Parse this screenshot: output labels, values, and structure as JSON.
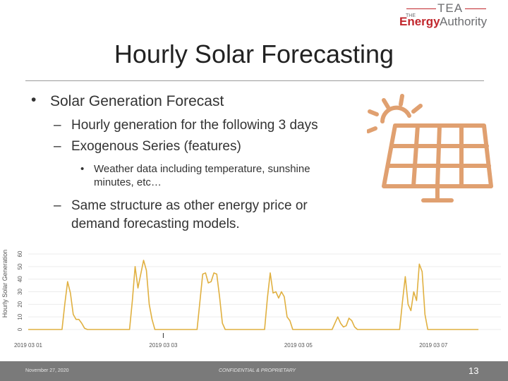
{
  "logo": {
    "line1": "TEA",
    "prefix": "THE",
    "word1": "Energy",
    "word2": "Authority"
  },
  "title": "Hourly Solar Forecasting",
  "bullets": {
    "main": "Solar Generation Forecast",
    "sub1": "Hourly generation for the following 3 days",
    "sub2": "Exogenous Series (features)",
    "sub3_line1": "Weather data including temperature, sunshine",
    "sub3_line2": "minutes, etc…",
    "sub4_line1": "Same structure as other energy price or",
    "sub4_line2": "demand forecasting models.",
    "dash": "–",
    "dot": "•"
  },
  "icon": {
    "name": "solar-panel-icon",
    "color": "#e0a070"
  },
  "chart_data": {
    "type": "line",
    "ylabel": "Hourly Solar Generation",
    "ylim": [
      0,
      60
    ],
    "yticks": [
      "0",
      "10",
      "20",
      "30",
      "40",
      "50",
      "60"
    ],
    "xlim": [
      0,
      168
    ],
    "xticks": [
      {
        "x": 0,
        "label": "2019 03 01"
      },
      {
        "x": 48,
        "label": "2019 03 03"
      },
      {
        "x": 96,
        "label": "2019 03 05"
      },
      {
        "x": 144,
        "label": "2019 03 07"
      }
    ],
    "series": [
      {
        "color": "#e0b040",
        "points": [
          [
            0,
            0
          ],
          [
            12,
            0
          ],
          [
            13,
            20
          ],
          [
            14,
            38
          ],
          [
            15,
            29
          ],
          [
            16,
            12
          ],
          [
            17,
            8
          ],
          [
            18,
            8
          ],
          [
            19,
            5
          ],
          [
            20,
            1
          ],
          [
            21,
            0
          ],
          [
            36,
            0
          ],
          [
            37,
            23
          ],
          [
            38,
            50
          ],
          [
            39,
            33
          ],
          [
            40,
            44
          ],
          [
            41,
            55
          ],
          [
            42,
            47
          ],
          [
            43,
            20
          ],
          [
            44,
            8
          ],
          [
            45,
            0
          ],
          [
            60,
            0
          ],
          [
            61,
            22
          ],
          [
            62,
            44
          ],
          [
            63,
            45
          ],
          [
            64,
            37
          ],
          [
            65,
            38
          ],
          [
            66,
            45
          ],
          [
            67,
            44
          ],
          [
            68,
            26
          ],
          [
            69,
            5
          ],
          [
            70,
            0
          ],
          [
            84,
            0
          ],
          [
            85,
            25
          ],
          [
            86,
            45
          ],
          [
            87,
            29
          ],
          [
            88,
            30
          ],
          [
            89,
            25
          ],
          [
            90,
            30
          ],
          [
            91,
            26
          ],
          [
            92,
            10
          ],
          [
            93,
            7
          ],
          [
            94,
            0
          ],
          [
            108,
            0
          ],
          [
            109,
            5
          ],
          [
            110,
            10
          ],
          [
            111,
            5
          ],
          [
            112,
            2
          ],
          [
            113,
            3
          ],
          [
            114,
            9
          ],
          [
            115,
            7
          ],
          [
            116,
            2
          ],
          [
            117,
            0
          ],
          [
            132,
            0
          ],
          [
            133,
            22
          ],
          [
            134,
            42
          ],
          [
            135,
            20
          ],
          [
            136,
            15
          ],
          [
            137,
            30
          ],
          [
            138,
            23
          ],
          [
            139,
            52
          ],
          [
            140,
            46
          ],
          [
            141,
            12
          ],
          [
            142,
            0
          ],
          [
            160,
            0
          ]
        ]
      }
    ]
  },
  "footer": {
    "date": "November 27, 2020",
    "confidential": "CONFIDENTIAL & PROPRIETARY",
    "page": "13"
  }
}
